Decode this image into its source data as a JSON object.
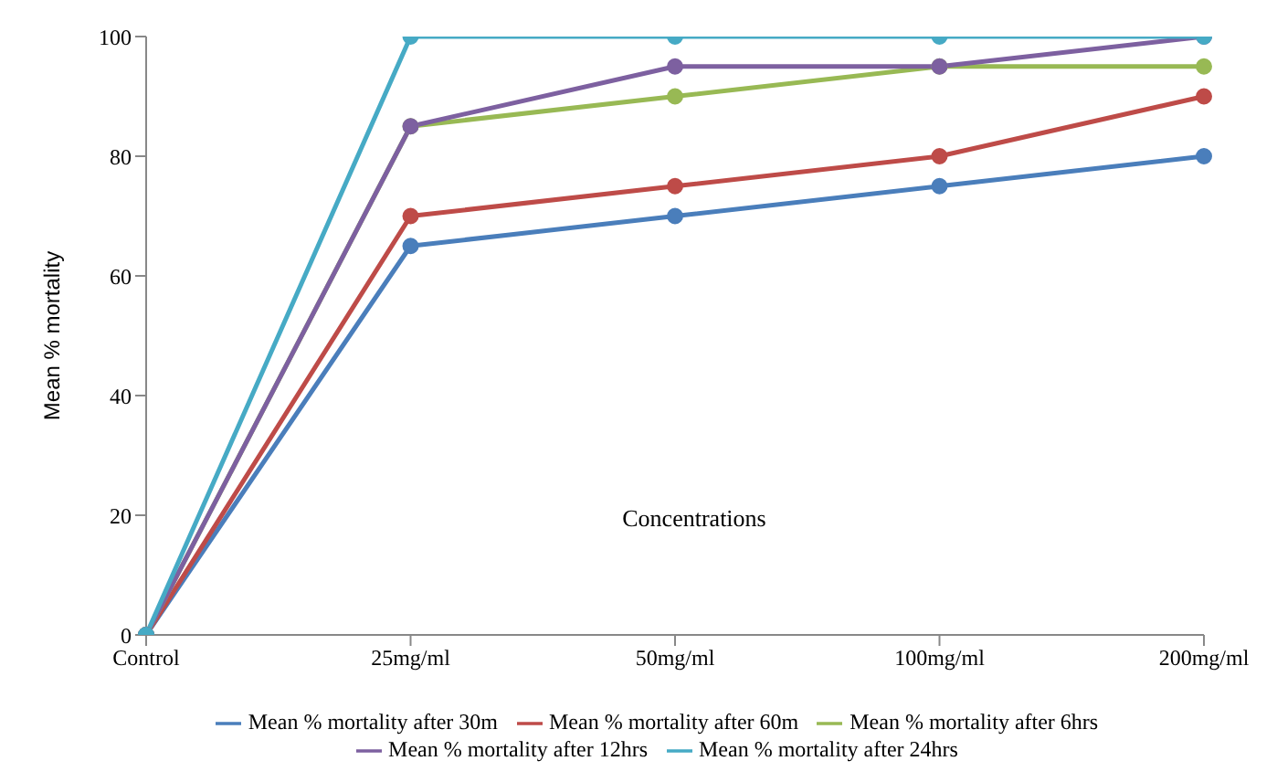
{
  "chart_data": {
    "type": "line",
    "xlabel": "Concentrations",
    "ylabel": "Mean % mortality",
    "categories": [
      "Control",
      "25mg/ml",
      "50mg/ml",
      "100mg/ml",
      "200mg/ml"
    ],
    "series": [
      {
        "name": "Mean % mortality after 30m",
        "color": "#4a7ebb",
        "values": [
          0,
          65,
          70,
          75,
          80
        ]
      },
      {
        "name": "Mean % mortality after 60m",
        "color": "#be4b48",
        "values": [
          0,
          70,
          75,
          80,
          90
        ]
      },
      {
        "name": "Mean % mortality after 6hrs",
        "color": "#98b954",
        "values": [
          0,
          85,
          90,
          95,
          95
        ]
      },
      {
        "name": "Mean % mortality after 12hrs",
        "color": "#7d60a0",
        "values": [
          0,
          85,
          95,
          95,
          100
        ]
      },
      {
        "name": "Mean % mortality after 24hrs",
        "color": "#46aac5",
        "values": [
          0,
          100,
          100,
          100,
          100
        ]
      }
    ],
    "ylim": [
      0,
      100
    ],
    "yticks": [
      0,
      20,
      40,
      60,
      80,
      100
    ],
    "grid": false,
    "legend": "bottom",
    "marker": "circle",
    "line_style": "solid"
  }
}
